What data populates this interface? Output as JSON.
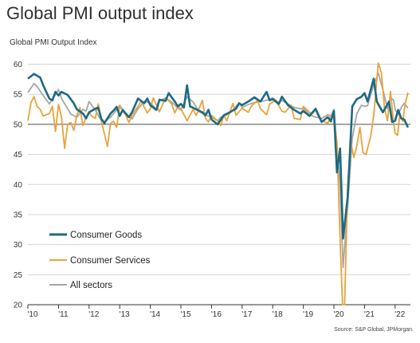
{
  "title": "Global PMI output index",
  "source": "Source: S&P Global, JPMorgan.",
  "colors": {
    "consumer_goods": "#1e6a82",
    "consumer_services": "#e8a33c",
    "all_sectors": "#a6a6a6",
    "grid": "#d4d4d4",
    "axis": "#333333"
  },
  "chart_data": {
    "type": "line",
    "ylabel": "Global PMI Output Index",
    "ylim": [
      20,
      61
    ],
    "yticks": [
      20,
      25,
      30,
      35,
      40,
      45,
      50,
      55,
      60
    ],
    "x_range": [
      2010.0,
      2022.5
    ],
    "xticks": [
      {
        "value": 2010,
        "label": "'10"
      },
      {
        "value": 2011,
        "label": "'11"
      },
      {
        "value": 2012,
        "label": "'12"
      },
      {
        "value": 2013,
        "label": "'13"
      },
      {
        "value": 2014,
        "label": "'14"
      },
      {
        "value": 2015,
        "label": "'15"
      },
      {
        "value": 2016,
        "label": "'16"
      },
      {
        "value": 2017,
        "label": "'17"
      },
      {
        "value": 2018,
        "label": "'18"
      },
      {
        "value": 2019,
        "label": "'19"
      },
      {
        "value": 2020,
        "label": "'20"
      },
      {
        "value": 2021,
        "label": "'21"
      },
      {
        "value": 2022,
        "label": "'22"
      }
    ],
    "grid": "horizontal",
    "reference_line": 50,
    "legend": {
      "placement": "bottom-left"
    },
    "series": [
      {
        "name": "Consumer Goods",
        "key": "consumer_goods",
        "points": [
          [
            2010.0,
            57.6
          ],
          [
            2010.2,
            58.4
          ],
          [
            2010.4,
            57.8
          ],
          [
            2010.5,
            56.5
          ],
          [
            2010.7,
            54.3
          ],
          [
            2010.8,
            54.0
          ],
          [
            2010.9,
            55.4
          ],
          [
            2011.0,
            54.8
          ],
          [
            2011.1,
            55.4
          ],
          [
            2011.3,
            54.9
          ],
          [
            2011.5,
            53.5
          ],
          [
            2011.6,
            52.5
          ],
          [
            2011.8,
            51.8
          ],
          [
            2011.9,
            51.0
          ],
          [
            2012.0,
            52.0
          ],
          [
            2012.2,
            52.6
          ],
          [
            2012.3,
            52.8
          ],
          [
            2012.4,
            50.9
          ],
          [
            2012.5,
            50.2
          ],
          [
            2012.7,
            51.8
          ],
          [
            2012.8,
            52.3
          ],
          [
            2012.9,
            52.9
          ],
          [
            2013.0,
            51.4
          ],
          [
            2013.1,
            52.4
          ],
          [
            2013.3,
            51.2
          ],
          [
            2013.4,
            52.0
          ],
          [
            2013.6,
            54.3
          ],
          [
            2013.8,
            53.5
          ],
          [
            2013.9,
            54.3
          ],
          [
            2014.0,
            53.2
          ],
          [
            2014.2,
            52.4
          ],
          [
            2014.3,
            54.1
          ],
          [
            2014.5,
            53.9
          ],
          [
            2014.6,
            55.2
          ],
          [
            2014.8,
            53.8
          ],
          [
            2014.9,
            53.0
          ],
          [
            2015.0,
            53.4
          ],
          [
            2015.1,
            52.8
          ],
          [
            2015.2,
            56.5
          ],
          [
            2015.3,
            53.0
          ],
          [
            2015.5,
            52.5
          ],
          [
            2015.7,
            52.0
          ],
          [
            2015.8,
            51.5
          ],
          [
            2015.9,
            52.4
          ],
          [
            2016.0,
            50.8
          ],
          [
            2016.2,
            50.0
          ],
          [
            2016.4,
            51.5
          ],
          [
            2016.6,
            52.0
          ],
          [
            2016.8,
            52.6
          ],
          [
            2016.9,
            53.5
          ],
          [
            2017.0,
            53.2
          ],
          [
            2017.2,
            53.8
          ],
          [
            2017.4,
            54.5
          ],
          [
            2017.6,
            53.8
          ],
          [
            2017.8,
            55.4
          ],
          [
            2017.9,
            54.0
          ],
          [
            2018.0,
            54.2
          ],
          [
            2018.2,
            53.4
          ],
          [
            2018.3,
            54.6
          ],
          [
            2018.5,
            53.2
          ],
          [
            2018.7,
            52.4
          ],
          [
            2018.9,
            51.8
          ],
          [
            2019.0,
            52.2
          ],
          [
            2019.2,
            51.4
          ],
          [
            2019.4,
            52.6
          ],
          [
            2019.6,
            50.4
          ],
          [
            2019.8,
            51.2
          ],
          [
            2019.9,
            50.5
          ],
          [
            2020.0,
            52.2
          ],
          [
            2020.1,
            42.0
          ],
          [
            2020.2,
            46.0
          ],
          [
            2020.3,
            31.0
          ],
          [
            2020.45,
            38.0
          ],
          [
            2020.6,
            53.0
          ],
          [
            2020.75,
            54.2
          ],
          [
            2020.9,
            54.6
          ],
          [
            2021.0,
            55.2
          ],
          [
            2021.1,
            53.8
          ],
          [
            2021.3,
            57.6
          ],
          [
            2021.4,
            53.8
          ],
          [
            2021.6,
            52.0
          ],
          [
            2021.8,
            53.8
          ],
          [
            2021.9,
            50.4
          ],
          [
            2022.0,
            50.6
          ],
          [
            2022.1,
            52.4
          ],
          [
            2022.2,
            51.0
          ],
          [
            2022.3,
            50.8
          ],
          [
            2022.42,
            49.5
          ]
        ]
      },
      {
        "name": "Consumer Services",
        "key": "consumer_services",
        "points": [
          [
            2010.0,
            50.6
          ],
          [
            2010.1,
            53.6
          ],
          [
            2010.2,
            54.6
          ],
          [
            2010.3,
            53.0
          ],
          [
            2010.4,
            52.5
          ],
          [
            2010.5,
            51.4
          ],
          [
            2010.7,
            51.8
          ],
          [
            2010.8,
            53.0
          ],
          [
            2010.9,
            48.8
          ],
          [
            2011.0,
            53.3
          ],
          [
            2011.1,
            51.2
          ],
          [
            2011.2,
            46.0
          ],
          [
            2011.3,
            50.0
          ],
          [
            2011.4,
            50.3
          ],
          [
            2011.5,
            49.0
          ],
          [
            2011.6,
            51.5
          ],
          [
            2011.7,
            52.8
          ],
          [
            2011.8,
            49.8
          ],
          [
            2011.9,
            51.2
          ],
          [
            2012.0,
            52.0
          ],
          [
            2012.1,
            51.3
          ],
          [
            2012.2,
            51.0
          ],
          [
            2012.3,
            53.4
          ],
          [
            2012.4,
            50.5
          ],
          [
            2012.6,
            46.3
          ],
          [
            2012.7,
            50.2
          ],
          [
            2012.8,
            50.5
          ],
          [
            2012.9,
            49.5
          ],
          [
            2013.0,
            53.0
          ],
          [
            2013.2,
            51.5
          ],
          [
            2013.3,
            50.3
          ],
          [
            2013.4,
            51.5
          ],
          [
            2013.6,
            53.0
          ],
          [
            2013.7,
            53.9
          ],
          [
            2013.9,
            51.9
          ],
          [
            2014.0,
            52.6
          ],
          [
            2014.1,
            54.4
          ],
          [
            2014.3,
            52.1
          ],
          [
            2014.5,
            54.4
          ],
          [
            2014.7,
            53.4
          ],
          [
            2014.8,
            51.9
          ],
          [
            2014.9,
            53.0
          ],
          [
            2015.0,
            52.6
          ],
          [
            2015.2,
            50.6
          ],
          [
            2015.4,
            52.5
          ],
          [
            2015.5,
            51.5
          ],
          [
            2015.7,
            54.0
          ],
          [
            2015.8,
            51.0
          ],
          [
            2015.9,
            50.4
          ],
          [
            2016.0,
            51.5
          ],
          [
            2016.2,
            50.6
          ],
          [
            2016.3,
            49.8
          ],
          [
            2016.4,
            51.5
          ],
          [
            2016.5,
            50.6
          ],
          [
            2016.7,
            53.5
          ],
          [
            2016.8,
            51.5
          ],
          [
            2017.0,
            52.7
          ],
          [
            2017.2,
            52.0
          ],
          [
            2017.3,
            53.0
          ],
          [
            2017.5,
            54.0
          ],
          [
            2017.6,
            52.6
          ],
          [
            2017.8,
            51.6
          ],
          [
            2017.9,
            53.4
          ],
          [
            2018.1,
            54.0
          ],
          [
            2018.3,
            52.2
          ],
          [
            2018.4,
            52.0
          ],
          [
            2018.6,
            53.2
          ],
          [
            2018.7,
            51.0
          ],
          [
            2018.9,
            50.8
          ],
          [
            2019.0,
            53.0
          ],
          [
            2019.2,
            52.0
          ],
          [
            2019.3,
            51.8
          ],
          [
            2019.4,
            52.4
          ],
          [
            2019.5,
            51.2
          ],
          [
            2019.6,
            50.6
          ],
          [
            2019.8,
            50.2
          ],
          [
            2019.9,
            51.5
          ],
          [
            2020.0,
            51.2
          ],
          [
            2020.1,
            47.0
          ],
          [
            2020.2,
            31.0
          ],
          [
            2020.28,
            20.0
          ],
          [
            2020.35,
            20.0
          ],
          [
            2020.45,
            40.0
          ],
          [
            2020.55,
            47.0
          ],
          [
            2020.65,
            44.5
          ],
          [
            2020.75,
            46.5
          ],
          [
            2020.85,
            49.5
          ],
          [
            2020.95,
            45.3
          ],
          [
            2021.05,
            45.0
          ],
          [
            2021.2,
            48.0
          ],
          [
            2021.3,
            51.5
          ],
          [
            2021.45,
            60.2
          ],
          [
            2021.55,
            58.6
          ],
          [
            2021.65,
            52.8
          ],
          [
            2021.75,
            50.6
          ],
          [
            2021.85,
            55.5
          ],
          [
            2021.95,
            50.2
          ],
          [
            2022.0,
            48.5
          ],
          [
            2022.08,
            48.2
          ],
          [
            2022.15,
            51.5
          ],
          [
            2022.25,
            50.5
          ],
          [
            2022.33,
            53.5
          ],
          [
            2022.42,
            55.3
          ]
        ]
      },
      {
        "name": "All sectors",
        "key": "all_sectors",
        "points": [
          [
            2010.0,
            55.3
          ],
          [
            2010.2,
            56.8
          ],
          [
            2010.3,
            56.3
          ],
          [
            2010.5,
            54.8
          ],
          [
            2010.7,
            53.4
          ],
          [
            2010.8,
            54.2
          ],
          [
            2010.9,
            54.9
          ],
          [
            2011.0,
            55.8
          ],
          [
            2011.1,
            54.3
          ],
          [
            2011.3,
            52.6
          ],
          [
            2011.4,
            51.7
          ],
          [
            2011.6,
            51.2
          ],
          [
            2011.8,
            52.5
          ],
          [
            2011.9,
            52.2
          ],
          [
            2012.0,
            53.8
          ],
          [
            2012.2,
            52.4
          ],
          [
            2012.4,
            50.6
          ],
          [
            2012.5,
            50.4
          ],
          [
            2012.7,
            51.2
          ],
          [
            2012.9,
            52.4
          ],
          [
            2013.0,
            53.2
          ],
          [
            2013.2,
            51.6
          ],
          [
            2013.4,
            50.9
          ],
          [
            2013.6,
            52.6
          ],
          [
            2013.8,
            53.8
          ],
          [
            2014.0,
            53.6
          ],
          [
            2014.2,
            52.5
          ],
          [
            2014.3,
            53.9
          ],
          [
            2014.5,
            54.4
          ],
          [
            2014.7,
            53.7
          ],
          [
            2014.9,
            52.7
          ],
          [
            2015.0,
            52.4
          ],
          [
            2015.2,
            54.6
          ],
          [
            2015.4,
            53.7
          ],
          [
            2015.6,
            52.1
          ],
          [
            2015.8,
            51.6
          ],
          [
            2015.9,
            51.4
          ],
          [
            2016.0,
            51.2
          ],
          [
            2016.2,
            50.6
          ],
          [
            2016.3,
            51.2
          ],
          [
            2016.5,
            51.6
          ],
          [
            2016.7,
            52.4
          ],
          [
            2016.9,
            53.6
          ],
          [
            2017.0,
            52.8
          ],
          [
            2017.2,
            53.3
          ],
          [
            2017.4,
            53.6
          ],
          [
            2017.6,
            53.8
          ],
          [
            2017.8,
            54.0
          ],
          [
            2018.0,
            54.4
          ],
          [
            2018.2,
            53.6
          ],
          [
            2018.3,
            54.0
          ],
          [
            2018.5,
            53.4
          ],
          [
            2018.7,
            52.8
          ],
          [
            2018.9,
            52.6
          ],
          [
            2019.0,
            52.7
          ],
          [
            2019.2,
            51.6
          ],
          [
            2019.4,
            51.2
          ],
          [
            2019.6,
            51.0
          ],
          [
            2019.8,
            51.6
          ],
          [
            2019.9,
            51.4
          ],
          [
            2020.0,
            52.5
          ],
          [
            2020.1,
            46.2
          ],
          [
            2020.2,
            39.8
          ],
          [
            2020.3,
            26.2
          ],
          [
            2020.45,
            36.5
          ],
          [
            2020.6,
            47.7
          ],
          [
            2020.75,
            51.8
          ],
          [
            2020.9,
            53.2
          ],
          [
            2021.0,
            53.0
          ],
          [
            2021.1,
            53.1
          ],
          [
            2021.3,
            56.6
          ],
          [
            2021.45,
            58.5
          ],
          [
            2021.6,
            55.8
          ],
          [
            2021.75,
            52.6
          ],
          [
            2021.85,
            54.5
          ],
          [
            2021.95,
            54.0
          ],
          [
            2022.0,
            52.5
          ],
          [
            2022.1,
            51.6
          ],
          [
            2022.2,
            52.8
          ],
          [
            2022.3,
            53.5
          ],
          [
            2022.42,
            52.7
          ]
        ]
      }
    ]
  }
}
